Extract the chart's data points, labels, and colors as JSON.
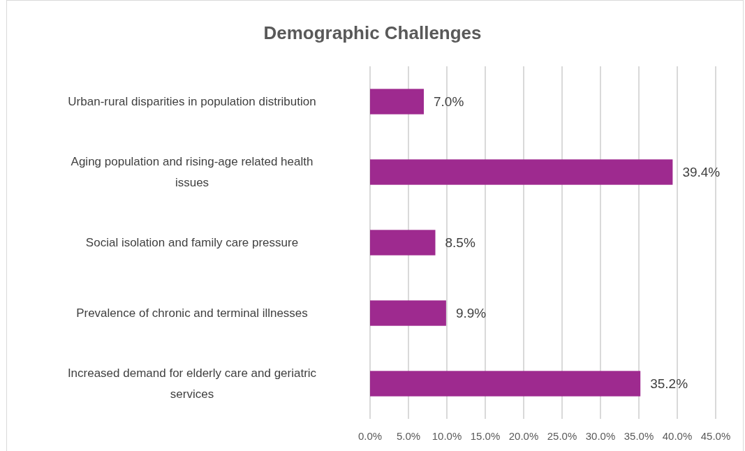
{
  "chart_data": {
    "type": "bar",
    "orientation": "horizontal",
    "title": "Demographic Challenges",
    "categories": [
      "Urban-rural disparities in population distribution",
      "Aging population and rising-age related health issues",
      "Social isolation and family care pressure",
      "Prevalence of chronic and terminal illnesses",
      "Increased demand for elderly care and geriatric services"
    ],
    "values": [
      7.0,
      39.4,
      8.5,
      9.9,
      35.2
    ],
    "value_labels": [
      "7.0%",
      "39.4%",
      "8.5%",
      "9.9%",
      "35.2%"
    ],
    "color": "#9e2a8f",
    "xlim": [
      0,
      45
    ],
    "xticks": [
      {
        "value": 0,
        "label": "0.0%"
      },
      {
        "value": 5,
        "label": "5.0%"
      },
      {
        "value": 10,
        "label": "10.0%"
      },
      {
        "value": 15,
        "label": "15.0%"
      },
      {
        "value": 20,
        "label": "20.0%"
      },
      {
        "value": 25,
        "label": "25.0%"
      },
      {
        "value": 30,
        "label": "30.0%"
      },
      {
        "value": 35,
        "label": "35.0%"
      },
      {
        "value": 40,
        "label": "40.0%"
      },
      {
        "value": 45,
        "label": "45.0%"
      }
    ],
    "grid": "x"
  }
}
